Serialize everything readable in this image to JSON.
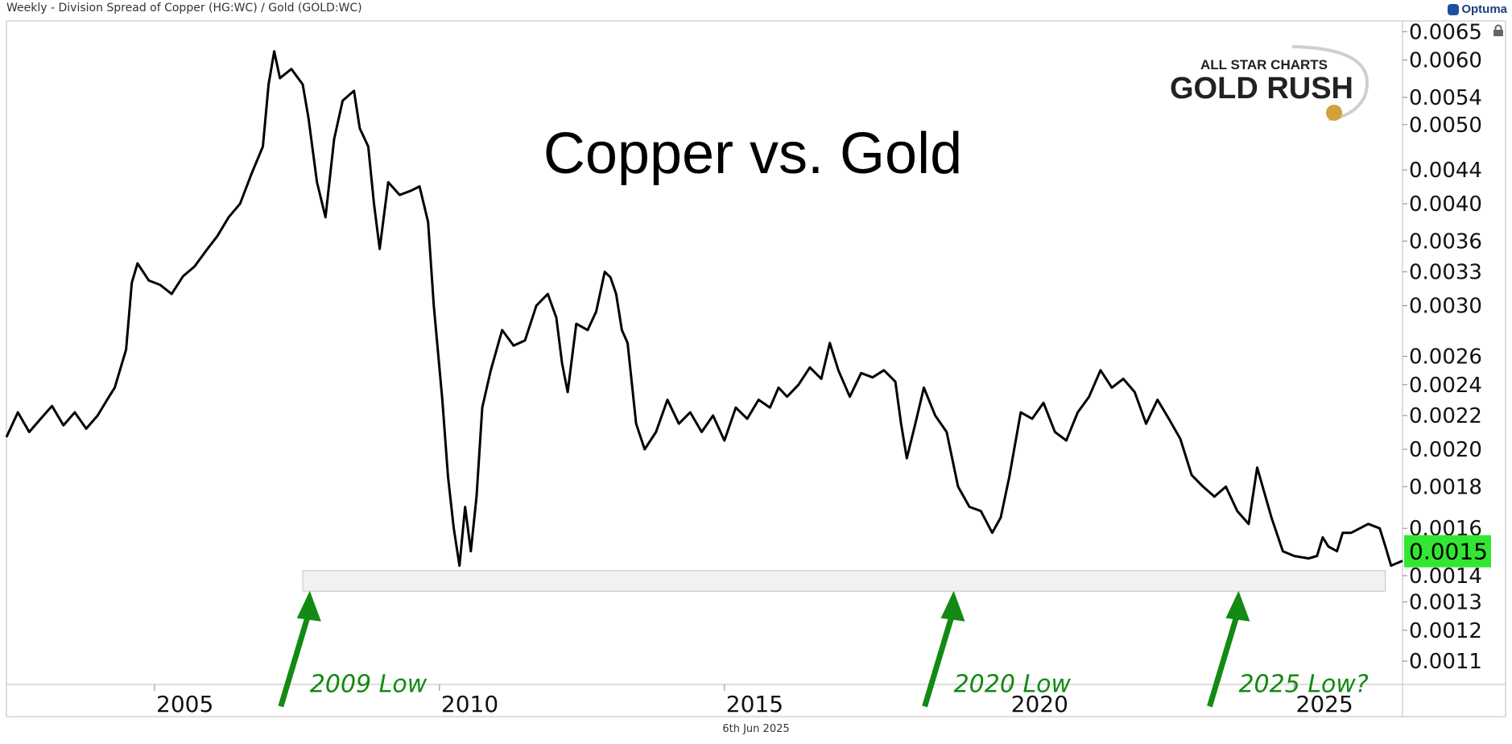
{
  "window": {
    "title": "Weekly - Division Spread of Copper (HG:WC) / Gold (GOLD:WC)",
    "brand": "Optuma",
    "footer_date": "6th Jun 2025"
  },
  "logo": {
    "line1": "ALL STAR CHARTS",
    "line2": "GOLD RUSH"
  },
  "colors": {
    "line": "#000000",
    "price_badge": "#33e633",
    "annotation": "#138a13",
    "band_fill": "#f1f1f1",
    "band_stroke": "#c4c4c4",
    "highlight": "#8c8c8c"
  },
  "chart_data": {
    "type": "line",
    "title": "Copper vs. Gold",
    "scale": "log",
    "xlim": [
      2002.4,
      2026.9
    ],
    "ylim": [
      0.00103,
      0.0067
    ],
    "x_ticks": [
      2005,
      2010,
      2015,
      2020,
      2025
    ],
    "y_ticks": [
      "0.0065",
      "0.0060",
      "0.0054",
      "0.0050",
      "0.0044",
      "0.0040",
      "0.0036",
      "0.0033",
      "0.0030",
      "0.0026",
      "0.0024",
      "0.0022",
      "0.0020",
      "0.0018",
      "0.0016",
      "0.0014",
      "0.0013",
      "0.0012",
      "0.0011"
    ],
    "last_value": "0.0015",
    "support_zone": {
      "x": [
        2007.6,
        2026.6
      ],
      "y": [
        0.00134,
        0.00142
      ]
    },
    "series": [
      {
        "points": [
          [
            2002.4,
            0.00207
          ],
          [
            2002.6,
            0.00222
          ],
          [
            2002.8,
            0.0021
          ],
          [
            2003.0,
            0.00218
          ],
          [
            2003.2,
            0.00226
          ],
          [
            2003.4,
            0.00214
          ],
          [
            2003.6,
            0.00222
          ],
          [
            2003.8,
            0.00212
          ],
          [
            2004.0,
            0.0022
          ],
          [
            2004.2,
            0.00232
          ],
          [
            2004.3,
            0.00238
          ],
          [
            2004.5,
            0.00265
          ],
          [
            2004.6,
            0.0032
          ],
          [
            2004.7,
            0.00338
          ],
          [
            2004.9,
            0.00322
          ],
          [
            2005.1,
            0.00318
          ],
          [
            2005.3,
            0.0031
          ],
          [
            2005.5,
            0.00326
          ],
          [
            2005.7,
            0.00335
          ],
          [
            2005.9,
            0.0035
          ],
          [
            2006.1,
            0.00365
          ],
          [
            2006.3,
            0.00385
          ],
          [
            2006.5,
            0.004
          ],
          [
            2006.7,
            0.00435
          ],
          [
            2006.9,
            0.0047
          ],
          [
            2007.0,
            0.0056
          ],
          [
            2007.1,
            0.00615
          ],
          [
            2007.2,
            0.0057
          ],
          [
            2007.4,
            0.00585
          ],
          [
            2007.6,
            0.0056
          ],
          [
            2007.7,
            0.0051
          ],
          [
            2007.85,
            0.00425
          ],
          [
            2008.0,
            0.00385
          ],
          [
            2008.15,
            0.0048
          ],
          [
            2008.3,
            0.00535
          ],
          [
            2008.5,
            0.0055
          ],
          [
            2008.6,
            0.00495
          ],
          [
            2008.75,
            0.0047
          ],
          [
            2008.85,
            0.004
          ],
          [
            2008.95,
            0.00352
          ],
          [
            2009.1,
            0.00425
          ],
          [
            2009.3,
            0.0041
          ],
          [
            2009.5,
            0.00415
          ],
          [
            2009.65,
            0.0042
          ],
          [
            2009.8,
            0.0038
          ],
          [
            2009.9,
            0.003
          ],
          [
            2010.05,
            0.0023
          ],
          [
            2010.15,
            0.00185
          ],
          [
            2010.25,
            0.0016
          ],
          [
            2010.35,
            0.00144
          ],
          [
            2010.45,
            0.0017
          ],
          [
            2010.55,
            0.0015
          ],
          [
            2010.65,
            0.00175
          ],
          [
            2010.75,
            0.00225
          ],
          [
            2010.9,
            0.0025
          ],
          [
            2011.1,
            0.0028
          ],
          [
            2011.3,
            0.00268
          ],
          [
            2011.5,
            0.00272
          ],
          [
            2011.7,
            0.003
          ],
          [
            2011.9,
            0.0031
          ],
          [
            2012.05,
            0.0029
          ],
          [
            2012.15,
            0.00255
          ],
          [
            2012.25,
            0.00235
          ],
          [
            2012.4,
            0.00285
          ],
          [
            2012.6,
            0.0028
          ],
          [
            2012.75,
            0.00295
          ],
          [
            2012.9,
            0.0033
          ],
          [
            2013.0,
            0.00325
          ],
          [
            2013.1,
            0.0031
          ],
          [
            2013.2,
            0.0028
          ],
          [
            2013.3,
            0.0027
          ],
          [
            2013.45,
            0.00215
          ],
          [
            2013.6,
            0.002
          ],
          [
            2013.8,
            0.0021
          ],
          [
            2014.0,
            0.0023
          ],
          [
            2014.2,
            0.00215
          ],
          [
            2014.4,
            0.00222
          ],
          [
            2014.6,
            0.0021
          ],
          [
            2014.8,
            0.0022
          ],
          [
            2015.0,
            0.00205
          ],
          [
            2015.2,
            0.00225
          ],
          [
            2015.4,
            0.00218
          ],
          [
            2015.6,
            0.0023
          ],
          [
            2015.8,
            0.00225
          ],
          [
            2015.95,
            0.00238
          ],
          [
            2016.1,
            0.00232
          ],
          [
            2016.3,
            0.0024
          ],
          [
            2016.5,
            0.00252
          ],
          [
            2016.7,
            0.00244
          ],
          [
            2016.85,
            0.0027
          ],
          [
            2017.0,
            0.0025
          ],
          [
            2017.2,
            0.00232
          ],
          [
            2017.4,
            0.00248
          ],
          [
            2017.6,
            0.00245
          ],
          [
            2017.8,
            0.0025
          ],
          [
            2018.0,
            0.00242
          ],
          [
            2018.1,
            0.00215
          ],
          [
            2018.2,
            0.00195
          ],
          [
            2018.35,
            0.00215
          ],
          [
            2018.5,
            0.00238
          ],
          [
            2018.7,
            0.0022
          ],
          [
            2018.9,
            0.0021
          ],
          [
            2019.1,
            0.0018
          ],
          [
            2019.3,
            0.0017
          ],
          [
            2019.5,
            0.00168
          ],
          [
            2019.7,
            0.00158
          ],
          [
            2019.85,
            0.00165
          ],
          [
            2020.0,
            0.00185
          ],
          [
            2020.2,
            0.00222
          ],
          [
            2020.4,
            0.00218
          ],
          [
            2020.6,
            0.00228
          ],
          [
            2020.8,
            0.0021
          ],
          [
            2021.0,
            0.00205
          ],
          [
            2021.2,
            0.00222
          ],
          [
            2021.4,
            0.00232
          ],
          [
            2021.6,
            0.0025
          ],
          [
            2021.8,
            0.00238
          ],
          [
            2022.0,
            0.00244
          ],
          [
            2022.2,
            0.00235
          ],
          [
            2022.4,
            0.00215
          ],
          [
            2022.6,
            0.0023
          ],
          [
            2022.8,
            0.00218
          ],
          [
            2023.0,
            0.00206
          ],
          [
            2023.2,
            0.00186
          ],
          [
            2023.4,
            0.0018
          ],
          [
            2023.6,
            0.00175
          ],
          [
            2023.8,
            0.0018
          ],
          [
            2024.0,
            0.00168
          ],
          [
            2024.2,
            0.00162
          ],
          [
            2024.35,
            0.0019
          ],
          [
            2024.6,
            0.00165
          ],
          [
            2024.8,
            0.0015
          ],
          [
            2025.0,
            0.00148
          ],
          [
            2025.25,
            0.00147
          ],
          [
            2025.4,
            0.00148
          ],
          [
            2025.5,
            0.00156
          ],
          [
            2025.6,
            0.00152
          ],
          [
            2025.75,
            0.0015
          ],
          [
            2025.85,
            0.00158
          ],
          [
            2026.0,
            0.00158
          ],
          [
            2026.15,
            0.0016
          ],
          [
            2026.3,
            0.00162
          ],
          [
            2026.5,
            0.0016
          ],
          [
            2026.6,
            0.00152
          ],
          [
            2026.7,
            0.00144
          ],
          [
            2026.8,
            0.00145
          ],
          [
            2026.9,
            0.00146
          ]
        ]
      }
    ],
    "annotations": [
      {
        "text": "2009 Low",
        "x": 2007.3,
        "y": 0.00106
      },
      {
        "text": "2020 Low",
        "x": 2018.6,
        "y": 0.00106
      },
      {
        "text": "2025 Low?",
        "x": 2023.6,
        "y": 0.00106
      }
    ]
  }
}
